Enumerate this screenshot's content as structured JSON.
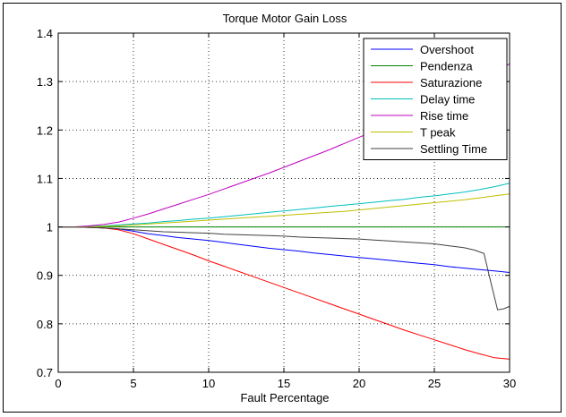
{
  "chart_data": {
    "type": "line",
    "title": "Torque Motor Gain Loss",
    "xlabel": "Fault Percentage",
    "ylabel": "",
    "xlim": [
      0,
      30
    ],
    "ylim": [
      0.7,
      1.4
    ],
    "xticks": [
      0,
      5,
      10,
      15,
      20,
      25,
      30
    ],
    "yticks": [
      0.7,
      0.8,
      0.9,
      1,
      1.1,
      1.2,
      1.3,
      1.4
    ],
    "grid": true,
    "legend_position": "top-right",
    "series": [
      {
        "name": "Overshoot",
        "color": "#0000ff",
        "x": [
          0,
          1,
          2,
          3,
          4,
          5,
          6,
          7,
          8,
          9,
          10,
          11,
          12,
          13,
          14,
          15,
          16,
          17,
          18,
          19,
          20,
          21,
          22,
          23,
          24,
          25,
          26,
          27,
          28,
          29,
          30
        ],
        "y": [
          1,
          1,
          0.999,
          0.998,
          0.996,
          0.991,
          0.986,
          0.982,
          0.978,
          0.975,
          0.972,
          0.968,
          0.964,
          0.96,
          0.956,
          0.953,
          0.95,
          0.946,
          0.943,
          0.94,
          0.937,
          0.934,
          0.931,
          0.928,
          0.925,
          0.922,
          0.918,
          0.915,
          0.912,
          0.909,
          0.906
        ]
      },
      {
        "name": "Pendenza",
        "color": "#008000",
        "x": [
          0,
          30
        ],
        "y": [
          1,
          1
        ]
      },
      {
        "name": "Saturazione",
        "color": "#ff0000",
        "x": [
          0,
          1,
          2,
          3,
          4,
          5,
          6,
          7,
          8,
          9,
          10,
          11,
          12,
          13,
          14,
          15,
          16,
          17,
          18,
          19,
          20,
          21,
          22,
          23,
          24,
          25,
          26,
          27,
          28,
          29,
          30
        ],
        "y": [
          1,
          1,
          0.999,
          0.998,
          0.994,
          0.986,
          0.975,
          0.964,
          0.953,
          0.942,
          0.93,
          0.919,
          0.908,
          0.897,
          0.886,
          0.875,
          0.864,
          0.853,
          0.842,
          0.831,
          0.82,
          0.809,
          0.798,
          0.787,
          0.777,
          0.767,
          0.757,
          0.747,
          0.738,
          0.73,
          0.727
        ]
      },
      {
        "name": "Delay time",
        "color": "#00bfbf",
        "x": [
          0,
          1,
          2,
          3,
          4,
          5,
          6,
          7,
          8,
          9,
          10,
          11,
          12,
          13,
          14,
          15,
          16,
          17,
          18,
          19,
          20,
          21,
          22,
          23,
          24,
          25,
          26,
          27,
          28,
          29,
          30
        ],
        "y": [
          1,
          1,
          1.001,
          1.002,
          1.004,
          1.006,
          1.008,
          1.011,
          1.013,
          1.016,
          1.018,
          1.021,
          1.024,
          1.027,
          1.03,
          1.033,
          1.036,
          1.039,
          1.042,
          1.045,
          1.048,
          1.051,
          1.054,
          1.057,
          1.061,
          1.064,
          1.068,
          1.072,
          1.077,
          1.083,
          1.09
        ]
      },
      {
        "name": "Rise time",
        "color": "#bf00bf",
        "x": [
          0,
          1,
          2,
          3,
          4,
          5,
          6,
          7,
          8,
          9,
          10,
          11,
          12,
          13,
          14,
          15,
          16,
          17,
          18,
          19,
          20,
          21,
          22,
          23,
          24,
          25,
          26,
          27,
          28,
          29,
          30
        ],
        "y": [
          1,
          1,
          1.002,
          1.005,
          1.01,
          1.018,
          1.027,
          1.037,
          1.047,
          1.057,
          1.067,
          1.078,
          1.089,
          1.1,
          1.111,
          1.123,
          1.135,
          1.147,
          1.159,
          1.172,
          1.185,
          1.198,
          1.211,
          1.225,
          1.239,
          1.253,
          1.267,
          1.282,
          1.298,
          1.315,
          1.337
        ]
      },
      {
        "name": "T peak",
        "color": "#bfbf00",
        "x": [
          0,
          1,
          2,
          3,
          4,
          5,
          6,
          7,
          8,
          9,
          10,
          11,
          12,
          13,
          14,
          15,
          16,
          17,
          18,
          19,
          20,
          21,
          22,
          23,
          24,
          25,
          26,
          27,
          28,
          29,
          30
        ],
        "y": [
          1,
          1,
          1,
          1.001,
          1.002,
          1.004,
          1.006,
          1.008,
          1.01,
          1.012,
          1.014,
          1.016,
          1.018,
          1.02,
          1.022,
          1.024,
          1.026,
          1.028,
          1.03,
          1.032,
          1.035,
          1.038,
          1.041,
          1.044,
          1.047,
          1.05,
          1.053,
          1.056,
          1.06,
          1.064,
          1.068
        ]
      },
      {
        "name": "Settling Time",
        "color": "#404040",
        "x": [
          0,
          1,
          2,
          3,
          4,
          5,
          6,
          7,
          8,
          9,
          10,
          11,
          12,
          13,
          14,
          15,
          16,
          17,
          18,
          19,
          20,
          21,
          22,
          23,
          24,
          25,
          26,
          27,
          27.7,
          28.3,
          28.8,
          29.2,
          29.6,
          30
        ],
        "y": [
          1,
          1,
          0.999,
          0.998,
          0.996,
          0.994,
          0.992,
          0.99,
          0.989,
          0.988,
          0.987,
          0.985,
          0.984,
          0.983,
          0.982,
          0.981,
          0.979,
          0.978,
          0.977,
          0.976,
          0.975,
          0.973,
          0.971,
          0.969,
          0.967,
          0.965,
          0.961,
          0.957,
          0.952,
          0.945,
          0.88,
          0.829,
          0.831,
          0.836
        ]
      }
    ]
  }
}
